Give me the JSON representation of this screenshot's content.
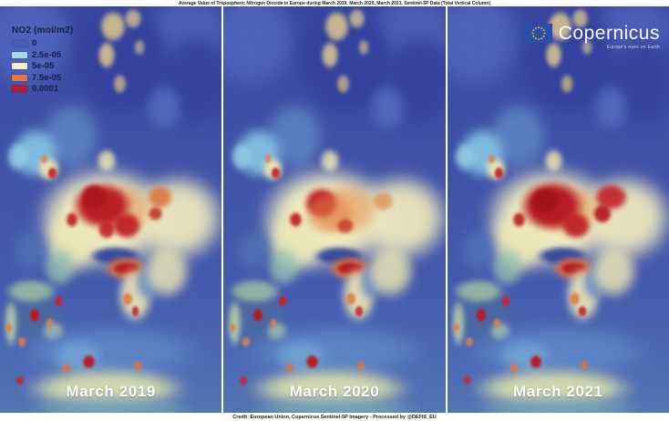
{
  "header": {
    "title": "Average Value of Tropospheric Nitrogen Dioxide in Europe during March 2019, March 2020, March 2021.  Sentinel-5P Data (Total Vertical Column)"
  },
  "footer": {
    "credit": "Credit: European Union, Copernicus Sentinel-5P Imagery - Processed by @DEFIS_EU"
  },
  "legend": {
    "title": "NO2 (mol/m2)",
    "entries": [
      {
        "label": "0",
        "color": "#4a5cb5"
      },
      {
        "label": "2.5e-05",
        "color": "#a6d9ea"
      },
      {
        "label": "5e-05",
        "color": "#f4eec6"
      },
      {
        "label": "7.5e-05",
        "color": "#e8754a"
      },
      {
        "label": "0.0001",
        "color": "#bb1b2e"
      }
    ]
  },
  "logo": {
    "wordmark": "Copernicus",
    "tagline": "Europe's eyes on Earth"
  },
  "colors": {
    "sea_blue": "#3d50a5",
    "land_nodata_tan": "#c3b18c",
    "high_no2_red": "#b81d24",
    "flag_blue": "#2b4ea8",
    "flag_star_yellow": "#ffd617"
  },
  "map_base": [
    [
      12,
      8,
      45,
      26,
      "#4a5fb8",
      8,
      1
    ],
    [
      85,
      6,
      40,
      18,
      "#4a5fb8",
      8,
      0.9
    ],
    [
      55,
      13,
      48,
      30,
      "#31409a",
      6,
      1
    ],
    [
      88,
      18,
      35,
      25,
      "#33429c",
      6,
      1
    ],
    [
      74,
      25,
      16,
      12,
      "#4f68bc",
      5,
      0.9
    ],
    [
      32,
      32,
      28,
      18,
      "#5d83c6",
      6,
      0.8
    ],
    [
      51,
      5,
      12,
      8,
      "#c3b18c",
      2,
      1
    ],
    [
      48,
      12,
      8,
      7,
      "#c3b18c",
      2,
      1
    ],
    [
      54,
      19,
      6,
      5,
      "#b8a883",
      2,
      0.9
    ],
    [
      60,
      3,
      8,
      5,
      "#c3b18c",
      2,
      0.9
    ],
    [
      63,
      10,
      5,
      4,
      "#bfae8a",
      2,
      0.8
    ],
    [
      16,
      36,
      22,
      13,
      "#83c4e2",
      5,
      0.9
    ],
    [
      8,
      37,
      10,
      7,
      "#8fcbe4",
      3,
      0.85
    ],
    [
      22,
      40,
      10,
      6,
      "#efe7ae",
      3,
      0.9
    ],
    [
      23.5,
      41,
      4.5,
      3,
      "#c22329",
      1,
      0.95
    ],
    [
      20,
      37.5,
      3.5,
      2.5,
      "#dd7a44",
      1,
      0.8
    ],
    [
      48,
      38,
      9,
      6,
      "#ece5ae",
      3,
      0.85
    ],
    [
      47,
      52,
      62,
      26,
      "#efeabe",
      8,
      1
    ],
    [
      32,
      58,
      28,
      16,
      "#e9e6b4",
      6,
      0.95
    ],
    [
      27,
      64,
      16,
      10,
      "#8fc0ae",
      4,
      0.75
    ],
    [
      14,
      60,
      18,
      12,
      "#4c6cb4",
      6,
      0.9
    ],
    [
      80,
      52,
      44,
      22,
      "#ece7ba",
      8,
      0.95
    ],
    [
      55,
      50,
      30,
      13,
      "#e2823f",
      4,
      0.5
    ],
    [
      32.5,
      52.5,
      6,
      4,
      "#bf2026",
      1.5,
      0.95
    ],
    [
      52,
      61.5,
      24,
      5,
      "#2e4398",
      2.5,
      0.95
    ],
    [
      57,
      64.5,
      20,
      6,
      "#dd6f3a",
      3,
      0.9
    ],
    [
      57,
      64.5,
      13,
      3.5,
      "#b21b22",
      1.5,
      1
    ],
    [
      61,
      71,
      16,
      14,
      "#eae5b2",
      4,
      0.9
    ],
    [
      67,
      68,
      12,
      9,
      "#5a7fc2",
      4,
      0.85
    ],
    [
      57.5,
      72,
      5,
      3.5,
      "#dd7a44",
      1.2,
      0.9
    ],
    [
      61,
      75,
      4,
      3,
      "#c22329",
      1,
      0.9
    ],
    [
      75,
      65,
      22,
      14,
      "#e7e2b0",
      5,
      0.85
    ],
    [
      15,
      76,
      30,
      15,
      "#49659f",
      5,
      0.9
    ],
    [
      14,
      70,
      24,
      6,
      "#a9cfa0",
      3,
      0.7
    ],
    [
      5,
      78,
      6,
      12,
      "#c2dba6",
      3,
      0.8
    ],
    [
      24,
      80,
      10,
      5,
      "#bcd6a2",
      3,
      0.7
    ],
    [
      15.5,
      76,
      5,
      3.5,
      "#b21b22",
      1,
      1
    ],
    [
      26.5,
      72.5,
      4,
      3,
      "#c22329",
      1,
      0.95
    ],
    [
      22.5,
      78,
      3.5,
      2.5,
      "#dd7a44",
      1,
      0.9
    ],
    [
      10,
      82.5,
      4,
      2.5,
      "#dd7a44",
      1,
      0.85
    ],
    [
      4,
      79,
      3.5,
      2.5,
      "#dd7a44",
      1,
      0.85
    ],
    [
      50,
      85,
      85,
      13,
      "#5b82c6",
      8,
      0.9
    ],
    [
      35,
      86,
      24,
      8,
      "#74a8d4",
      5,
      0.7
    ],
    [
      48,
      94,
      75,
      10,
      "#dde2a8",
      6,
      0.9
    ],
    [
      50,
      99,
      80,
      6,
      "#74a0b4",
      5,
      0.8
    ],
    [
      40,
      87.5,
      6,
      3.5,
      "#b21b22",
      1.2,
      1
    ],
    [
      30,
      89,
      4,
      2.5,
      "#d96f3a",
      1,
      0.85
    ],
    [
      62,
      88.5,
      4,
      3,
      "#d96f3a",
      1,
      0.85
    ],
    [
      9,
      92,
      4,
      2.5,
      "#c22329",
      1,
      0.8
    ]
  ],
  "panels": [
    {
      "label": "March 2019",
      "hotspots": [
        [
          46,
          49,
          28,
          12,
          "#b81d24",
          2.5,
          1
        ],
        [
          42,
          47,
          12,
          7,
          "#a8141c",
          1.5,
          1
        ],
        [
          57,
          54,
          14,
          7,
          "#bb2026",
          2,
          0.95
        ],
        [
          48,
          55,
          8,
          5,
          "#bb2026",
          1.5,
          0.9
        ],
        [
          72,
          47,
          12,
          6,
          "#db6b36",
          2,
          0.85
        ],
        [
          70,
          51,
          7,
          4,
          "#c03028",
          1.5,
          0.9
        ]
      ]
    },
    {
      "label": "March 2020",
      "hotspots": [
        [
          44,
          48.5,
          16,
          8,
          "#bb1f26",
          2.5,
          1
        ],
        [
          48,
          51,
          24,
          11,
          "#df7c42",
          3,
          0.55
        ],
        [
          55,
          54,
          8,
          4,
          "#c23028",
          1.5,
          0.8
        ],
        [
          72,
          48,
          10,
          5,
          "#dd8044",
          2,
          0.7
        ]
      ]
    },
    {
      "label": "March 2021",
      "hotspots": [
        [
          47,
          49,
          30,
          13,
          "#b51b22",
          2.5,
          1
        ],
        [
          44,
          48,
          14,
          7,
          "#9d1119",
          1.5,
          1
        ],
        [
          74,
          47,
          16,
          7,
          "#bf2026",
          2,
          0.9
        ],
        [
          70,
          51,
          9,
          5,
          "#b21b22",
          1.5,
          0.95
        ],
        [
          58,
          54,
          14,
          7,
          "#bb2026",
          2,
          0.95
        ]
      ]
    }
  ]
}
